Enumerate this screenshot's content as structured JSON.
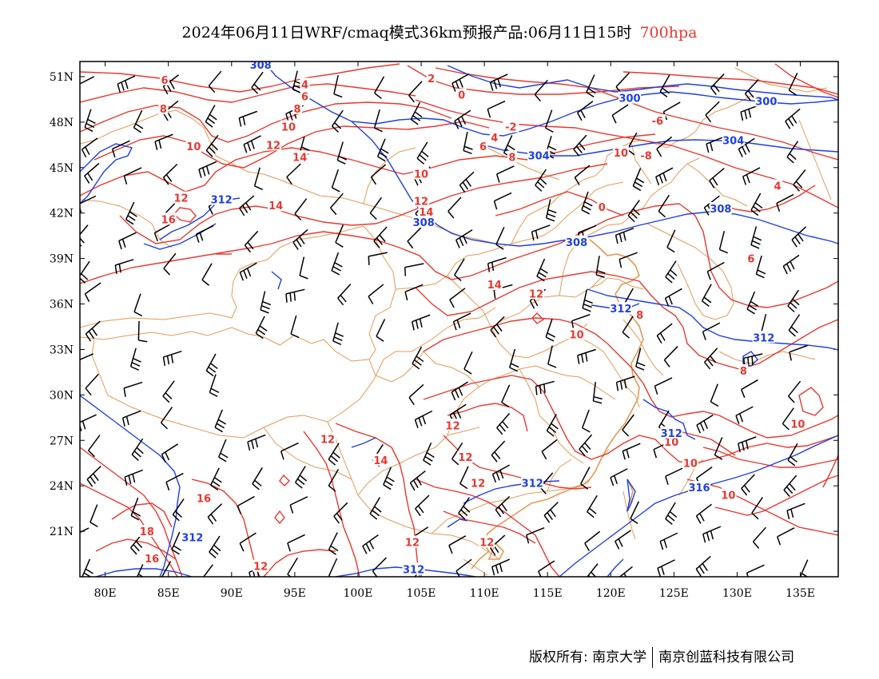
{
  "title": {
    "main": "2024年06月11日WRF/cmaq模式36km预报产品:06月11日15时",
    "level": "700hpa",
    "level_color": "#e8382f"
  },
  "map": {
    "projection": "lat-lon",
    "lon_range": [
      78,
      138
    ],
    "lat_range": [
      18,
      52
    ],
    "x_ticks": [
      "80E",
      "85E",
      "90E",
      "95E",
      "100E",
      "105E",
      "110E",
      "115E",
      "120E",
      "125E",
      "130E",
      "135E"
    ],
    "y_ticks": [
      "21N",
      "24N",
      "27N",
      "30N",
      "33N",
      "36N",
      "39N",
      "42N",
      "45N",
      "48N",
      "51N"
    ],
    "colors": {
      "temperature": "#e8382f",
      "height": "#1f3fe0",
      "boundaries": "#e39a55",
      "wind": "#000000"
    },
    "temperature_labels": [
      {
        "text": "6",
        "lon": 84.7,
        "lat": 50.8
      },
      {
        "text": "8",
        "lon": 84.6,
        "lat": 48.9
      },
      {
        "text": "10",
        "lon": 87.0,
        "lat": 46.4
      },
      {
        "text": "12",
        "lon": 86.0,
        "lat": 43.0
      },
      {
        "text": "16",
        "lon": 85.0,
        "lat": 41.6
      },
      {
        "text": "4",
        "lon": 95.8,
        "lat": 50.5
      },
      {
        "text": "6",
        "lon": 95.8,
        "lat": 49.7
      },
      {
        "text": "8",
        "lon": 95.2,
        "lat": 48.9
      },
      {
        "text": "10",
        "lon": 94.5,
        "lat": 47.7
      },
      {
        "text": "12",
        "lon": 93.3,
        "lat": 46.5
      },
      {
        "text": "14",
        "lon": 95.4,
        "lat": 45.7
      },
      {
        "text": "14",
        "lon": 93.5,
        "lat": 42.5
      },
      {
        "text": "2",
        "lon": 105.8,
        "lat": 50.9
      },
      {
        "text": "0",
        "lon": 108.2,
        "lat": 49.8
      },
      {
        "text": "-2",
        "lon": 112.1,
        "lat": 47.7
      },
      {
        "text": "4",
        "lon": 110.8,
        "lat": 47.0
      },
      {
        "text": "6",
        "lon": 109.9,
        "lat": 46.4
      },
      {
        "text": "8",
        "lon": 112.2,
        "lat": 45.7
      },
      {
        "text": "10",
        "lon": 105.0,
        "lat": 44.6
      },
      {
        "text": "12",
        "lon": 105.0,
        "lat": 42.8
      },
      {
        "text": "14",
        "lon": 105.4,
        "lat": 42.1
      },
      {
        "text": "0",
        "lon": 119.3,
        "lat": 42.4
      },
      {
        "text": "-6",
        "lon": 123.7,
        "lat": 48.1
      },
      {
        "text": "10",
        "lon": 120.8,
        "lat": 46.0
      },
      {
        "text": "-8",
        "lon": 122.8,
        "lat": 45.8
      },
      {
        "text": "4",
        "lon": 133.2,
        "lat": 43.8
      },
      {
        "text": "6",
        "lon": 131.1,
        "lat": 39.0
      },
      {
        "text": "14",
        "lon": 110.8,
        "lat": 37.3
      },
      {
        "text": "12",
        "lon": 114.1,
        "lat": 36.7
      },
      {
        "text": "10",
        "lon": 117.3,
        "lat": 34.0
      },
      {
        "text": "8",
        "lon": 122.3,
        "lat": 35.3
      },
      {
        "text": "8",
        "lon": 130.5,
        "lat": 31.6
      },
      {
        "text": "10",
        "lon": 134.8,
        "lat": 28.1
      },
      {
        "text": "10",
        "lon": 124.8,
        "lat": 26.9
      },
      {
        "text": "10",
        "lon": 126.3,
        "lat": 25.5
      },
      {
        "text": "10",
        "lon": 129.3,
        "lat": 23.4
      },
      {
        "text": "12",
        "lon": 107.5,
        "lat": 28.0
      },
      {
        "text": "12",
        "lon": 97.6,
        "lat": 27.1
      },
      {
        "text": "12",
        "lon": 108.5,
        "lat": 25.9
      },
      {
        "text": "14",
        "lon": 101.8,
        "lat": 25.7
      },
      {
        "text": "12",
        "lon": 109.5,
        "lat": 24.2
      },
      {
        "text": "16",
        "lon": 87.8,
        "lat": 23.2
      },
      {
        "text": "18",
        "lon": 83.3,
        "lat": 21.0
      },
      {
        "text": "16",
        "lon": 83.7,
        "lat": 19.2
      },
      {
        "text": "12",
        "lon": 104.3,
        "lat": 20.3
      },
      {
        "text": "12",
        "lon": 110.2,
        "lat": 20.3
      },
      {
        "text": "12",
        "lon": 92.3,
        "lat": 18.7
      }
    ],
    "height_labels": [
      {
        "text": "308",
        "lon": 92.3,
        "lat": 51.8
      },
      {
        "text": "300",
        "lon": 121.5,
        "lat": 49.6
      },
      {
        "text": "300",
        "lon": 132.3,
        "lat": 49.4
      },
      {
        "text": "304",
        "lon": 114.3,
        "lat": 45.8
      },
      {
        "text": "304",
        "lon": 129.7,
        "lat": 46.8
      },
      {
        "text": "312",
        "lon": 89.2,
        "lat": 42.9
      },
      {
        "text": "308",
        "lon": 105.2,
        "lat": 41.4
      },
      {
        "text": "308",
        "lon": 128.7,
        "lat": 42.3
      },
      {
        "text": "308",
        "lon": 117.3,
        "lat": 40.1
      },
      {
        "text": "312",
        "lon": 120.8,
        "lat": 35.7
      },
      {
        "text": "312",
        "lon": 132.1,
        "lat": 33.8
      },
      {
        "text": "312",
        "lon": 124.8,
        "lat": 27.5
      },
      {
        "text": "312",
        "lon": 113.8,
        "lat": 24.2
      },
      {
        "text": "316",
        "lon": 127.0,
        "lat": 23.9
      },
      {
        "text": "312",
        "lon": 86.9,
        "lat": 20.6
      },
      {
        "text": "312",
        "lon": 104.4,
        "lat": 18.5
      }
    ]
  },
  "footer": {
    "copyright": "版权所有: 南京大学",
    "company": "南京创蓝科技有限公司"
  }
}
